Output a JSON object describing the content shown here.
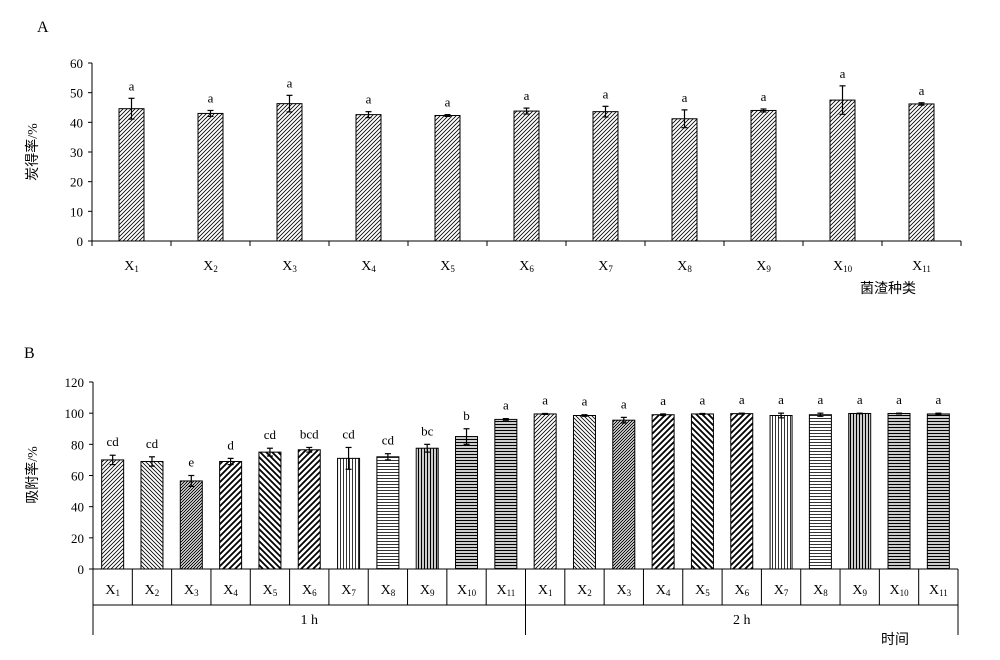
{
  "chart_data": [
    {
      "panel_label": "A",
      "type": "bar",
      "ylabel": "炭得率/%",
      "xlabel": "菌渣种类",
      "ylim": [
        0,
        60
      ],
      "yticks": [
        "0",
        "10",
        "20",
        "30",
        "40",
        "50",
        "60"
      ],
      "categories": [
        {
          "main": "X",
          "sub": "1"
        },
        {
          "main": "X",
          "sub": "2"
        },
        {
          "main": "X",
          "sub": "3"
        },
        {
          "main": "X",
          "sub": "4"
        },
        {
          "main": "X",
          "sub": "5"
        },
        {
          "main": "X",
          "sub": "6"
        },
        {
          "main": "X",
          "sub": "7"
        },
        {
          "main": "X",
          "sub": "8"
        },
        {
          "main": "X",
          "sub": "9"
        },
        {
          "main": "X",
          "sub": "10"
        },
        {
          "main": "X",
          "sub": "11"
        }
      ],
      "values": [
        44.6,
        43.0,
        46.3,
        42.6,
        42.3,
        43.8,
        43.6,
        41.2,
        44.0,
        47.5,
        46.2
      ],
      "errors": [
        3.5,
        1.0,
        2.8,
        1.0,
        0.3,
        1.0,
        1.8,
        3.0,
        0.5,
        4.8,
        0.4
      ],
      "significance": [
        "a",
        "a",
        "a",
        "a",
        "a",
        "a",
        "a",
        "a",
        "a",
        "a",
        "a"
      ],
      "grid": false
    },
    {
      "panel_label": "B",
      "type": "bar",
      "ylabel": "吸附率/%",
      "xlabel": "时间",
      "ylim": [
        0,
        120
      ],
      "yticks": [
        "0",
        "20",
        "40",
        "60",
        "80",
        "100",
        "120"
      ],
      "categories": [
        {
          "main": "X",
          "sub": "1"
        },
        {
          "main": "X",
          "sub": "2"
        },
        {
          "main": "X",
          "sub": "3"
        },
        {
          "main": "X",
          "sub": "4"
        },
        {
          "main": "X",
          "sub": "5"
        },
        {
          "main": "X",
          "sub": "6"
        },
        {
          "main": "X",
          "sub": "7"
        },
        {
          "main": "X",
          "sub": "8"
        },
        {
          "main": "X",
          "sub": "9"
        },
        {
          "main": "X",
          "sub": "10"
        },
        {
          "main": "X",
          "sub": "11"
        }
      ],
      "groups": [
        {
          "label": "1 h",
          "values": [
            70.0,
            69.0,
            56.5,
            69.0,
            75.0,
            76.5,
            71.0,
            72.0,
            77.5,
            85.0,
            96.0
          ],
          "errors": [
            3.0,
            3.0,
            3.5,
            2.0,
            2.5,
            1.5,
            7.0,
            2.0,
            2.5,
            5.0,
            0.5
          ],
          "significance": [
            "cd",
            "cd",
            "e",
            "d",
            "cd",
            "bcd",
            "cd",
            "cd",
            "bc",
            "b",
            "a"
          ]
        },
        {
          "label": "2 h",
          "values": [
            99.5,
            98.5,
            95.5,
            99.0,
            99.5,
            99.7,
            98.5,
            99.0,
            99.8,
            99.8,
            99.5
          ],
          "errors": [
            0.3,
            0.5,
            1.8,
            0.5,
            0.3,
            0.3,
            1.5,
            1.0,
            0.2,
            0.2,
            0.5
          ],
          "significance": [
            "a",
            "a",
            "a",
            "a",
            "a",
            "a",
            "a",
            "a",
            "a",
            "a",
            "a"
          ]
        }
      ],
      "grid": false
    }
  ]
}
